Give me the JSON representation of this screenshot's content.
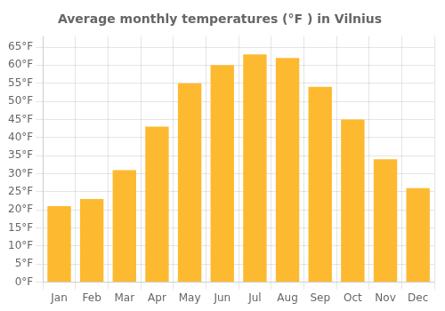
{
  "chart_data": {
    "type": "bar",
    "title": "Average monthly temperatures (°F ) in Vilnius",
    "categories": [
      "Jan",
      "Feb",
      "Mar",
      "Apr",
      "May",
      "Jun",
      "Jul",
      "Aug",
      "Sep",
      "Oct",
      "Nov",
      "Dec"
    ],
    "values": [
      21,
      23,
      31,
      43,
      55,
      60,
      63,
      62,
      54,
      45,
      34,
      26
    ],
    "color": "#FDB930",
    "ylim": [
      0,
      68
    ],
    "yticks": [
      {
        "value": 0,
        "label": "0°F"
      },
      {
        "value": 5,
        "label": "5°F"
      },
      {
        "value": 10,
        "label": "10°F"
      },
      {
        "value": 15,
        "label": "15°F"
      },
      {
        "value": 20,
        "label": "20°F"
      },
      {
        "value": 25,
        "label": "25°F"
      },
      {
        "value": 30,
        "label": "30°F"
      },
      {
        "value": 35,
        "label": "35°F"
      },
      {
        "value": 40,
        "label": "40°F"
      },
      {
        "value": 45,
        "label": "45°F"
      },
      {
        "value": 50,
        "label": "50°F"
      },
      {
        "value": 55,
        "label": "55°F"
      },
      {
        "value": 60,
        "label": "60°F"
      },
      {
        "value": 65,
        "label": "65°F"
      }
    ],
    "grid": true
  }
}
